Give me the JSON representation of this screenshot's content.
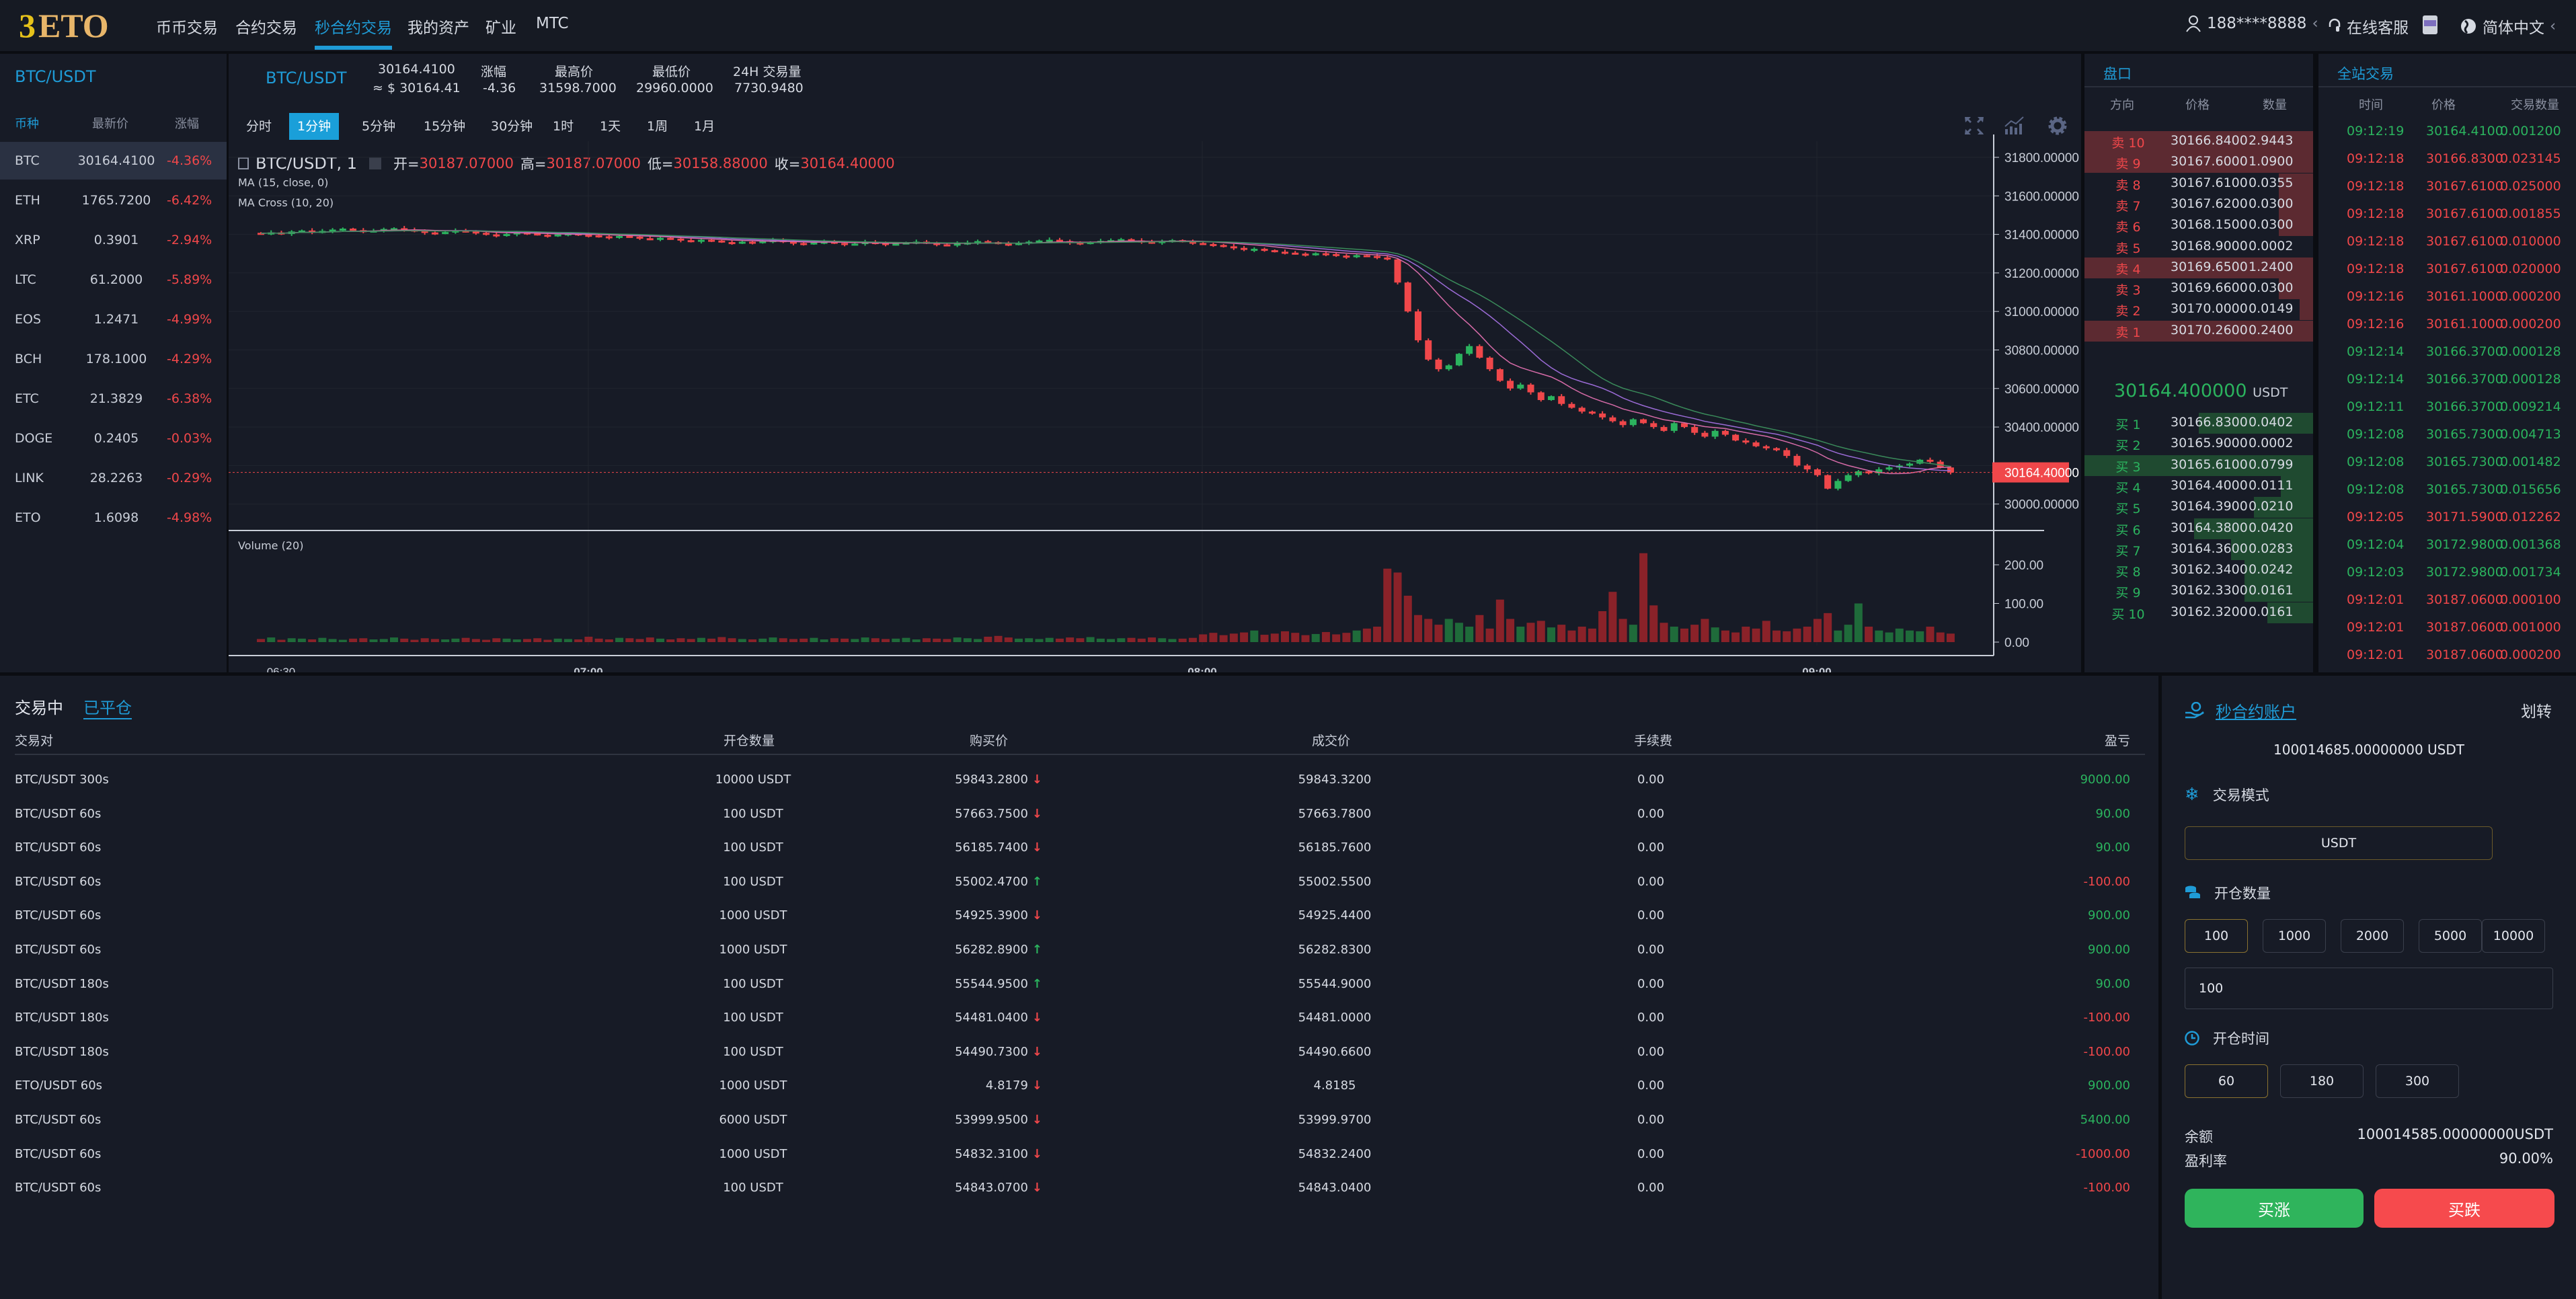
{
  "nav": {
    "logo": "ETO",
    "items": [
      "币币交易",
      "合约交易",
      "秒合约交易",
      "我的资产",
      "矿业",
      "MTC"
    ],
    "active_index": 2,
    "user": "188****8888",
    "support": "在线客服",
    "app_icon": "APP",
    "language": "简体中文"
  },
  "colors": {
    "accent": "#1f9bd6",
    "up": "#2bb35e",
    "down": "#f0474a"
  },
  "market_list": {
    "title": "BTC/USDT",
    "headers": [
      "币种",
      "最新价",
      "涨幅"
    ],
    "selected": "BTC",
    "rows": [
      [
        "BTC",
        "30164.4100",
        "-4.36%"
      ],
      [
        "ETH",
        "1765.7200",
        "-6.42%"
      ],
      [
        "XRP",
        "0.3901",
        "-2.94%"
      ],
      [
        "LTC",
        "61.2000",
        "-5.89%"
      ],
      [
        "EOS",
        "1.2471",
        "-4.99%"
      ],
      [
        "BCH",
        "178.1000",
        "-4.29%"
      ],
      [
        "ETC",
        "21.3829",
        "-6.38%"
      ],
      [
        "DOGE",
        "0.2405",
        "-0.03%"
      ],
      [
        "LINK",
        "28.2263",
        "-0.29%"
      ],
      [
        "ETO",
        "1.6098",
        "-4.98%"
      ]
    ]
  },
  "ticker": {
    "pair": "BTC/USDT",
    "price": "30164.4100",
    "usd": "≈ $ 30164.41",
    "change_label": "涨幅",
    "change": "-4.36",
    "high_label": "最高价",
    "high": "31598.7000",
    "low_label": "最低价",
    "low": "29960.0000",
    "vol_label": "24H 交易量",
    "vol": "7730.9480"
  },
  "intervals": [
    "分时",
    "1分钟",
    "5分钟",
    "15分钟",
    "30分钟",
    "1时",
    "1天",
    "1周",
    "1月"
  ],
  "active_interval": 1,
  "chart_data": {
    "type": "candlestick",
    "symbol_label": "BTC/USDT, 1",
    "ohlc_label": {
      "o_label": "开=",
      "o": "30187.07000",
      "h_label": "高=",
      "h": "30187.07000",
      "l_label": "低=",
      "l": "30158.88000",
      "c_label": "收=",
      "c": "30164.40000"
    },
    "studies": [
      "MA (15, close, 0)",
      "MA Cross (10, 20)"
    ],
    "volume_label": "Volume (20)",
    "y_ticks": [
      "31800.00000",
      "31600.00000",
      "31400.00000",
      "31200.00000",
      "31000.00000",
      "30800.00000",
      "30600.00000",
      "30400.00000",
      "30000.00000"
    ],
    "y_range": [
      29880,
      31850
    ],
    "last_price": "30164.40000",
    "vol_ticks": [
      "200.00",
      "100.00",
      "0.00"
    ],
    "x_ticks": [
      "06:30",
      "07:00",
      "08:00",
      "09:00"
    ],
    "start_time": "06:28",
    "interval_minutes": 1,
    "close": [
      31405,
      31410,
      31402,
      31415,
      31420,
      31412,
      31418,
      31425,
      31430,
      31422,
      31415,
      31420,
      31428,
      31432,
      31425,
      31418,
      31410,
      31405,
      31412,
      31420,
      31415,
      31408,
      31400,
      31395,
      31402,
      31410,
      31405,
      31398,
      31392,
      31400,
      31405,
      31398,
      31395,
      31390,
      31385,
      31392,
      31388,
      31380,
      31375,
      31382,
      31378,
      31370,
      31365,
      31372,
      31368,
      31360,
      31355,
      31362,
      31358,
      31365,
      31370,
      31362,
      31355,
      31350,
      31358,
      31362,
      31355,
      31348,
      31352,
      31360,
      31355,
      31350,
      31352,
      31358,
      31362,
      31355,
      31348,
      31345,
      31352,
      31358,
      31365,
      31360,
      31352,
      31348,
      31355,
      31362,
      31368,
      31372,
      31365,
      31358,
      31352,
      31360,
      31366,
      31370,
      31375,
      31368,
      31362,
      31358,
      31365,
      31370,
      31362,
      31355,
      31350,
      31345,
      31338,
      31330,
      31320,
      31325,
      31318,
      31310,
      31305,
      31300,
      31295,
      31302,
      31298,
      31290,
      31285,
      31292,
      31288,
      31280,
      31270,
      31150,
      31000,
      30850,
      30750,
      30700,
      30720,
      30780,
      30820,
      30760,
      30700,
      30640,
      30600,
      30620,
      30580,
      30540,
      30560,
      30520,
      30500,
      30480,
      30470,
      30450,
      30430,
      30410,
      30440,
      30420,
      30400,
      30380,
      30420,
      30400,
      30370,
      30350,
      30380,
      30360,
      30330,
      30320,
      30300,
      30290,
      30280,
      30250,
      30200,
      30180,
      30150,
      30080,
      30120,
      30150,
      30170,
      30160,
      30180,
      30190,
      30200,
      30210,
      30230,
      30220,
      30190,
      30164
    ],
    "volume": [
      8,
      12,
      6,
      10,
      9,
      7,
      11,
      8,
      6,
      9,
      10,
      7,
      8,
      12,
      9,
      6,
      10,
      8,
      7,
      9,
      11,
      8,
      6,
      10,
      9,
      7,
      8,
      10,
      6,
      9,
      8,
      7,
      14,
      9,
      7,
      11,
      10,
      8,
      12,
      9,
      7,
      10,
      8,
      11,
      9,
      13,
      10,
      8,
      7,
      9,
      12,
      10,
      8,
      9,
      11,
      7,
      10,
      9,
      8,
      12,
      10,
      8,
      9,
      11,
      7,
      10,
      9,
      8,
      12,
      10,
      8,
      14,
      16,
      12,
      9,
      10,
      8,
      11,
      9,
      12,
      10,
      13,
      9,
      8,
      10,
      11,
      9,
      12,
      10,
      8,
      9,
      11,
      20,
      24,
      18,
      22,
      25,
      30,
      19,
      22,
      28,
      24,
      18,
      21,
      26,
      20,
      24,
      30,
      35,
      40,
      190,
      180,
      120,
      70,
      60,
      45,
      60,
      50,
      40,
      70,
      35,
      110,
      60,
      40,
      50,
      55,
      38,
      45,
      30,
      40,
      35,
      80,
      130,
      60,
      45,
      230,
      95,
      50,
      40,
      35,
      45,
      60,
      38,
      30,
      25,
      40,
      35,
      55,
      30,
      28,
      35,
      40,
      60,
      75,
      30,
      45,
      100,
      40,
      30,
      25,
      35,
      30,
      28,
      40,
      25,
      22
    ]
  },
  "orderbook": {
    "title": "盘口",
    "headers": [
      "方向",
      "价格",
      "数量"
    ],
    "asks": [
      [
        "卖 10",
        "30166.8400",
        "2.9443",
        1.0
      ],
      [
        "卖 9",
        "30167.6000",
        "1.0900",
        1.0
      ],
      [
        "卖 8",
        "30167.6100",
        "0.0355",
        0.15
      ],
      [
        "卖 7",
        "30167.6200",
        "0.0300",
        0.15
      ],
      [
        "卖 6",
        "30168.1500",
        "0.0300",
        0.15
      ],
      [
        "卖 5",
        "30168.9000",
        "0.0002",
        0.0
      ],
      [
        "卖 4",
        "30169.6500",
        "1.2400",
        1.0
      ],
      [
        "卖 3",
        "30169.6600",
        "0.0300",
        0.15
      ],
      [
        "卖 2",
        "30170.0000",
        "0.0149",
        0.06
      ],
      [
        "卖 1",
        "30170.2600",
        "0.2400",
        1.0
      ]
    ],
    "mid_price": "30164.400000",
    "mid_unit": "USDT",
    "bids": [
      [
        "买 1",
        "30166.8300",
        "0.0402",
        0.5
      ],
      [
        "买 2",
        "30165.9000",
        "0.0002",
        0.0
      ],
      [
        "买 3",
        "30165.6100",
        "0.0799",
        1.0
      ],
      [
        "买 4",
        "30164.4000",
        "0.0111",
        0.14
      ],
      [
        "买 5",
        "30164.3900",
        "0.0210",
        0.26
      ],
      [
        "买 6",
        "30164.3800",
        "0.0420",
        0.52
      ],
      [
        "买 7",
        "30164.3600",
        "0.0283",
        0.36
      ],
      [
        "买 8",
        "30162.3400",
        "0.0242",
        0.3
      ],
      [
        "买 9",
        "30162.3300",
        "0.0161",
        0.3
      ],
      [
        "买 10",
        "30162.3200",
        "0.0161",
        0.2
      ]
    ]
  },
  "trades": {
    "title": "全站交易",
    "headers": [
      "时间",
      "价格",
      "交易数量"
    ],
    "rows": [
      [
        "09:12:19",
        "30164.4100",
        "0.001200",
        "up"
      ],
      [
        "09:12:18",
        "30166.8300",
        "0.023145",
        "down"
      ],
      [
        "09:12:18",
        "30167.6100",
        "0.025000",
        "down"
      ],
      [
        "09:12:18",
        "30167.6100",
        "0.001855",
        "down"
      ],
      [
        "09:12:18",
        "30167.6100",
        "0.010000",
        "down"
      ],
      [
        "09:12:18",
        "30167.6100",
        "0.020000",
        "down"
      ],
      [
        "09:12:16",
        "30161.1000",
        "0.000200",
        "down"
      ],
      [
        "09:12:16",
        "30161.1000",
        "0.000200",
        "down"
      ],
      [
        "09:12:14",
        "30166.3700",
        "0.000128",
        "up"
      ],
      [
        "09:12:14",
        "30166.3700",
        "0.000128",
        "up"
      ],
      [
        "09:12:11",
        "30166.3700",
        "0.009214",
        "up"
      ],
      [
        "09:12:08",
        "30165.7300",
        "0.004713",
        "up"
      ],
      [
        "09:12:08",
        "30165.7300",
        "0.001482",
        "up"
      ],
      [
        "09:12:08",
        "30165.7300",
        "0.015656",
        "up"
      ],
      [
        "09:12:05",
        "30171.5900",
        "0.012262",
        "down"
      ],
      [
        "09:12:04",
        "30172.9800",
        "0.001368",
        "up"
      ],
      [
        "09:12:03",
        "30172.9800",
        "0.001734",
        "up"
      ],
      [
        "09:12:01",
        "30187.0600",
        "0.000100",
        "down"
      ],
      [
        "09:12:01",
        "30187.0600",
        "0.001000",
        "down"
      ],
      [
        "09:12:01",
        "30187.0600",
        "0.000200",
        "down"
      ]
    ]
  },
  "positions": {
    "tabs": [
      "交易中",
      "已平仓"
    ],
    "active_tab": 1,
    "headers": [
      "交易对",
      "开仓数量",
      "购买价",
      "成交价",
      "手续费",
      "盈亏"
    ],
    "rows": [
      [
        "BTC/USDT 300s",
        "10000 USDT",
        "59843.2800",
        "down",
        "59843.3200",
        "0.00",
        "9000.00"
      ],
      [
        "BTC/USDT 60s",
        "100 USDT",
        "57663.7500",
        "down",
        "57663.7800",
        "0.00",
        "90.00"
      ],
      [
        "BTC/USDT 60s",
        "100 USDT",
        "56185.7400",
        "down",
        "56185.7600",
        "0.00",
        "90.00"
      ],
      [
        "BTC/USDT 60s",
        "100 USDT",
        "55002.4700",
        "up",
        "55002.5500",
        "0.00",
        "-100.00"
      ],
      [
        "BTC/USDT 60s",
        "1000 USDT",
        "54925.3900",
        "down",
        "54925.4400",
        "0.00",
        "900.00"
      ],
      [
        "BTC/USDT 60s",
        "1000 USDT",
        "56282.8900",
        "up",
        "56282.8300",
        "0.00",
        "900.00"
      ],
      [
        "BTC/USDT 180s",
        "100 USDT",
        "55544.9500",
        "up",
        "55544.9000",
        "0.00",
        "90.00"
      ],
      [
        "BTC/USDT 180s",
        "100 USDT",
        "54481.0400",
        "down",
        "54481.0000",
        "0.00",
        "-100.00"
      ],
      [
        "BTC/USDT 180s",
        "100 USDT",
        "54490.7300",
        "down",
        "54490.6600",
        "0.00",
        "-100.00"
      ],
      [
        "ETO/USDT 60s",
        "1000 USDT",
        "4.8179",
        "down",
        "4.8185",
        "0.00",
        "900.00"
      ],
      [
        "BTC/USDT 60s",
        "6000 USDT",
        "53999.9500",
        "down",
        "53999.9700",
        "0.00",
        "5400.00"
      ],
      [
        "BTC/USDT 60s",
        "1000 USDT",
        "54832.3100",
        "down",
        "54832.2400",
        "0.00",
        "-1000.00"
      ],
      [
        "BTC/USDT 60s",
        "100 USDT",
        "54843.0700",
        "down",
        "54843.0400",
        "0.00",
        "-100.00"
      ]
    ]
  },
  "order": {
    "account_label": "秒合约账户",
    "transfer": "划转",
    "account_balance": "100014685.00000000 USDT",
    "mode_label": "交易模式",
    "mode_value": "USDT",
    "amount_label": "开仓数量",
    "amount_options": [
      "100",
      "1000",
      "2000",
      "5000",
      "10000"
    ],
    "amount_selected": 0,
    "amount_input": "100",
    "time_label": "开仓时间",
    "time_options": [
      "60",
      "180",
      "300"
    ],
    "time_selected": 0,
    "balance_label": "余额",
    "balance": "100014585.00000000USDT",
    "rate_label": "盈利率",
    "rate": "90.00%",
    "buy_up": "买涨",
    "buy_down": "买跌"
  }
}
